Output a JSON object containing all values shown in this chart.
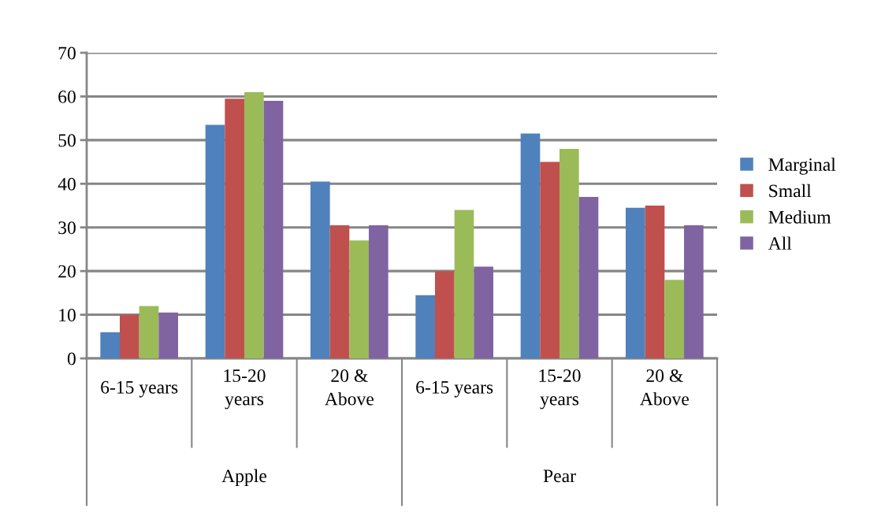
{
  "chart_data": {
    "type": "bar",
    "categories": [
      "6-15 years",
      "15-20\nyears",
      "20 &\nAbove",
      "6-15 years",
      "15-20\nyears",
      "20 &\nAbove"
    ],
    "series": [
      {
        "name": "Marginal",
        "color": "#4f81bd",
        "values": [
          6,
          53.5,
          40.5,
          14.5,
          51.5,
          34.5
        ]
      },
      {
        "name": "Small",
        "color": "#c0504d",
        "values": [
          10,
          59.5,
          30.5,
          20,
          45,
          35
        ]
      },
      {
        "name": "Medium",
        "color": "#9bbb59",
        "values": [
          12,
          61,
          27,
          34,
          48,
          18
        ]
      },
      {
        "name": "All",
        "color": "#8064a2",
        "values": [
          10.5,
          59,
          30.5,
          21,
          37,
          30.5
        ]
      }
    ],
    "annotations": [
      "Apple",
      "Pear"
    ],
    "ylim": [
      0,
      70
    ],
    "yticks": [
      0,
      10,
      20,
      30,
      40,
      50,
      60,
      70
    ],
    "grid": "y",
    "legend": "right"
  }
}
